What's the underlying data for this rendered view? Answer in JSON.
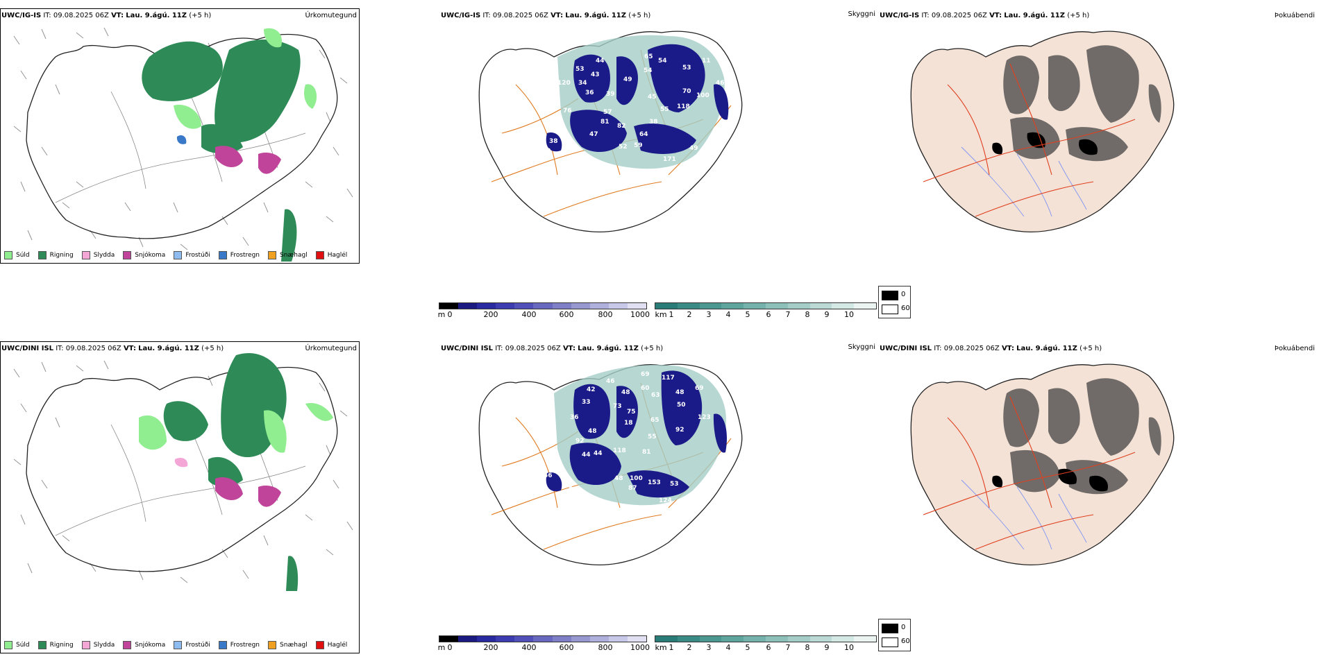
{
  "rows": [
    {
      "model": "UWC/IG-IS",
      "it_label": "IT:",
      "it_value": "09.08.2025 06Z",
      "vt_label": "VT:",
      "vt_value": "Lau. 9.ágú. 11Z",
      "offset": "(+5 h)",
      "titles": {
        "precip": "Úrkomutegund",
        "cloud": "Skyggni",
        "fog": "Þokuábendi"
      },
      "cloud_labels": [
        "53",
        "44",
        "54",
        "65",
        "43",
        "54",
        "53",
        "11",
        "120",
        "34",
        "49",
        "46",
        "36",
        "39",
        "70",
        "45",
        "100",
        "76",
        "57",
        "55",
        "118",
        "81",
        "82",
        "38",
        "47",
        "64",
        "59",
        "52",
        "49",
        "38",
        "39",
        "51",
        "171"
      ]
    },
    {
      "model": "UWC/DINI ISL",
      "it_label": "IT:",
      "it_value": "09.08.2025 06Z",
      "vt_label": "VT:",
      "vt_value": "Lau. 9.ágú. 11Z",
      "offset": "(+5 h)",
      "titles": {
        "precip": "Úrkomutegund",
        "cloud": "Skyggni",
        "fog": "Þokuábendi"
      },
      "cloud_labels": [
        "69",
        "46",
        "117",
        "42",
        "48",
        "60",
        "63",
        "48",
        "69",
        "33",
        "73",
        "50",
        "75",
        "36",
        "18",
        "123",
        "65",
        "92",
        "48",
        "118",
        "55",
        "92",
        "44",
        "44",
        "81",
        "56",
        "57",
        "52",
        "48",
        "100",
        "87",
        "153",
        "53",
        "124"
      ]
    }
  ],
  "precip_legend": [
    {
      "label": "Súld",
      "color": "#90ee90"
    },
    {
      "label": "Rigning",
      "color": "#2e8b57"
    },
    {
      "label": "Slydda",
      "color": "#f4a6d7"
    },
    {
      "label": "Snjókoma",
      "color": "#c0449a"
    },
    {
      "label": "Frostúði",
      "color": "#8fbcf0"
    },
    {
      "label": "Frostregn",
      "color": "#3a78c8"
    },
    {
      "label": "Snæhagl",
      "color": "#f0a020"
    },
    {
      "label": "Haglél",
      "color": "#e01010"
    }
  ],
  "cloudbase_scale": {
    "unit": "m",
    "ticks": [
      "0",
      "200",
      "400",
      "600",
      "800",
      "1000"
    ],
    "colors": [
      "#000000",
      "#1a1a80",
      "#2a2aa0",
      "#3c3cb0",
      "#5050b8",
      "#6868c0",
      "#7f7fc8",
      "#9898d0",
      "#b0b0dc",
      "#c8c8e8",
      "#e0e0f2"
    ]
  },
  "visibility_scale": {
    "unit": "km",
    "ticks": [
      "1",
      "2",
      "3",
      "4",
      "5",
      "6",
      "7",
      "8",
      "9",
      "10"
    ],
    "colors": [
      "#2a7c78",
      "#3a8a85",
      "#4a9890",
      "#5ea59e",
      "#74b2ab",
      "#8cc0b9",
      "#a4cdc7",
      "#bcdad5",
      "#d4e8e4",
      "#ecf4f2"
    ]
  },
  "fog_key": {
    "high_label": "0",
    "low_label": "60",
    "high_color": "#000000",
    "low_color": "#ffffff"
  },
  "colors": {
    "coast": "#222222",
    "road": "#e07a1f",
    "land_fog": "#f4e2d6",
    "river": "#7f95f2",
    "road_fog": "#e0401f"
  }
}
